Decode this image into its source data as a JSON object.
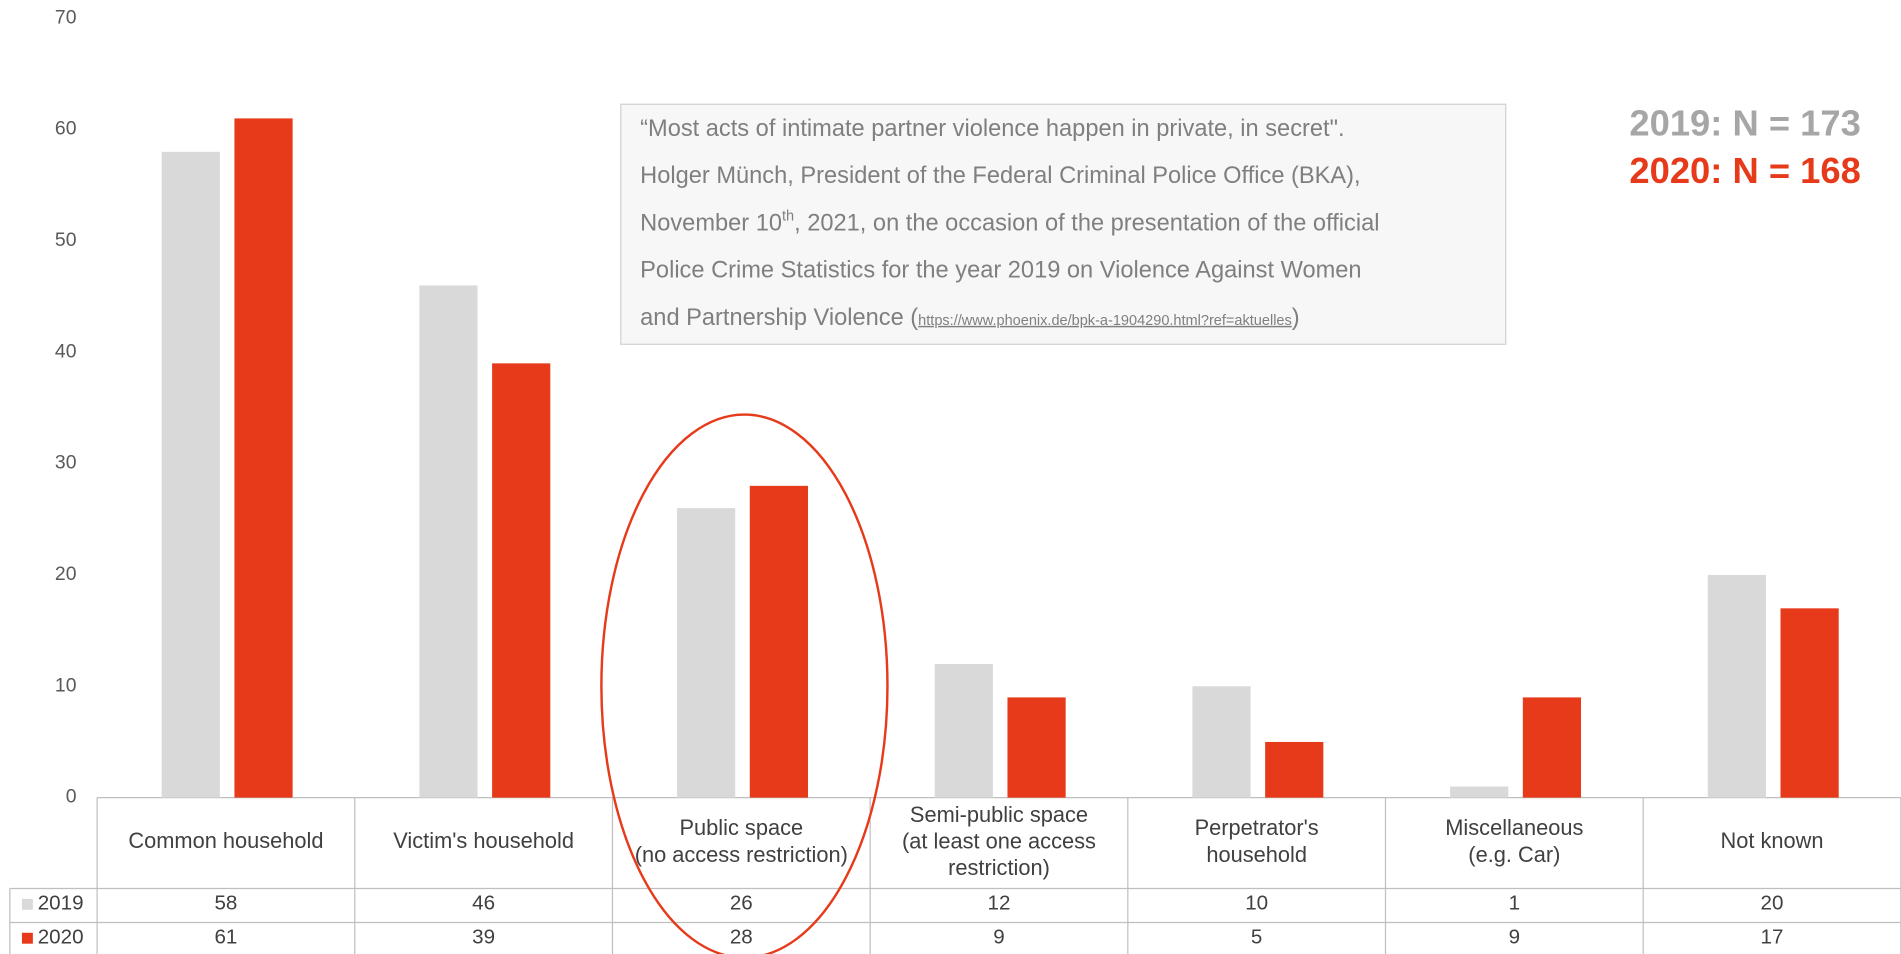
{
  "chart_data": {
    "type": "bar",
    "categories": [
      "Common household",
      "Victim's household",
      "Public space\n(no access restriction)",
      "Semi-public space\n(at least one access\nrestriction)",
      "Perpetrator's\nhousehold",
      "Miscellaneous\n(e.g. Car)",
      "Not known"
    ],
    "series": [
      {
        "name": "2019",
        "color": "#d9d9d9",
        "values": [
          58,
          46,
          26,
          12,
          10,
          1,
          20
        ]
      },
      {
        "name": "2020",
        "color": "#e63a1a",
        "values": [
          61,
          39,
          28,
          9,
          5,
          9,
          17
        ]
      }
    ],
    "ylim": [
      0,
      70
    ],
    "yticks": [
      0,
      10,
      20,
      30,
      40,
      50,
      60,
      70
    ],
    "grid": false,
    "annotations": [
      "2019: N = 173",
      "2020: N = 168"
    ],
    "quote": [
      "“Most acts of intimate partner violence happen in private, in secret\".",
      "Holger Münch, President of the Federal Criminal Police Office (BKA),",
      "November 10",
      "th",
      ", 2021, on the occasion of the presentation of the official",
      "Police Crime Statistics for the year 2019 on Violence Against Women",
      "and Partnership Violence (",
      "https://www.phoenix.de/bpk-a-1904290.html?ref=aktuelles",
      ")"
    ]
  }
}
